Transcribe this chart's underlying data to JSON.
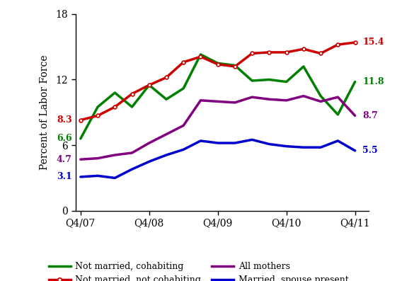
{
  "x_labels": [
    "Q4/07",
    "Q4/08",
    "Q4/09",
    "Q4/10",
    "Q4/11"
  ],
  "x_ticks": [
    0,
    4,
    8,
    12,
    16
  ],
  "series": {
    "not_married_cohabiting": {
      "label": "Not married, cohabiting",
      "color": "#008000",
      "linewidth": 2.5,
      "values": [
        6.6,
        9.5,
        10.8,
        9.5,
        11.5,
        10.2,
        11.2,
        14.3,
        13.5,
        13.3,
        11.9,
        12.0,
        11.8,
        13.2,
        10.5,
        8.8,
        11.8
      ]
    },
    "not_married_not_cohabiting": {
      "label": "Not married, not cohabiting",
      "color": "#cc0000",
      "linewidth": 2.5,
      "marker": "o",
      "markersize": 3.5,
      "values": [
        8.3,
        8.7,
        9.5,
        10.7,
        11.5,
        12.2,
        13.6,
        14.1,
        13.4,
        13.2,
        14.4,
        14.5,
        14.5,
        14.8,
        14.4,
        15.2,
        15.4
      ]
    },
    "all_mothers": {
      "label": "All mothers",
      "color": "#800080",
      "linewidth": 2.5,
      "values": [
        4.7,
        4.8,
        5.1,
        5.3,
        6.2,
        7.0,
        7.8,
        10.1,
        10.0,
        9.9,
        10.4,
        10.2,
        10.1,
        10.5,
        10.0,
        10.4,
        8.7
      ]
    },
    "married_spouse_present": {
      "label": "Married, spouse present",
      "color": "#0000cc",
      "linewidth": 2.5,
      "values": [
        3.1,
        3.2,
        3.0,
        3.8,
        4.5,
        5.1,
        5.6,
        6.4,
        6.2,
        6.2,
        6.5,
        6.1,
        5.9,
        5.8,
        5.8,
        6.4,
        5.5
      ]
    }
  },
  "ylabel": "Percent of Labor Force",
  "ylim": [
    0,
    18
  ],
  "yticks": [
    0,
    6,
    12,
    18
  ],
  "start_labels": {
    "not_married_not_cohabiting": {
      "value": "8.3",
      "y": 8.3
    },
    "not_married_cohabiting": {
      "value": "6.6",
      "y": 6.6
    },
    "all_mothers": {
      "value": "4.7",
      "y": 4.7
    },
    "married_spouse_present": {
      "value": "3.1",
      "y": 3.1
    }
  },
  "end_labels": {
    "not_married_not_cohabiting": {
      "value": "15.4",
      "y": 15.4
    },
    "not_married_cohabiting": {
      "value": "11.8",
      "y": 11.8
    },
    "all_mothers": {
      "value": "8.7",
      "y": 8.7
    },
    "married_spouse_present": {
      "value": "5.5",
      "y": 5.5
    }
  },
  "n_points": 17,
  "figsize": [
    5.92,
    3.97
  ],
  "dpi": 100
}
